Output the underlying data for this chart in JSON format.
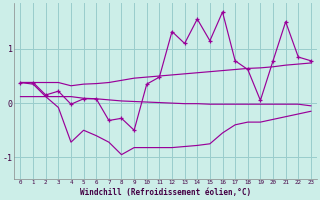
{
  "xlabel": "Windchill (Refroidissement éolien,°C)",
  "background_color": "#cceee8",
  "grid_color": "#99cccc",
  "line_color": "#990099",
  "x": [
    0,
    1,
    2,
    3,
    4,
    5,
    6,
    7,
    8,
    9,
    10,
    11,
    12,
    13,
    14,
    15,
    16,
    17,
    18,
    19,
    20,
    21,
    22,
    23
  ],
  "y_main": [
    0.38,
    0.38,
    0.15,
    0.22,
    -0.02,
    0.08,
    0.08,
    -0.32,
    -0.28,
    -0.5,
    0.35,
    0.48,
    1.32,
    1.1,
    1.55,
    1.15,
    1.68,
    0.78,
    0.62,
    0.05,
    0.78,
    1.5,
    0.85,
    0.78
  ],
  "y_upper": [
    0.38,
    0.38,
    0.38,
    0.38,
    0.32,
    0.35,
    0.36,
    0.38,
    0.42,
    0.46,
    0.48,
    0.5,
    0.52,
    0.54,
    0.56,
    0.58,
    0.6,
    0.62,
    0.64,
    0.65,
    0.67,
    0.7,
    0.72,
    0.74
  ],
  "y_flat": [
    0.12,
    0.12,
    0.12,
    0.12,
    0.12,
    0.09,
    0.08,
    0.06,
    0.04,
    0.03,
    0.02,
    0.01,
    0.0,
    -0.01,
    -0.01,
    -0.02,
    -0.02,
    -0.02,
    -0.02,
    -0.02,
    -0.02,
    -0.02,
    -0.02,
    -0.05
  ],
  "y_lower": [
    0.38,
    0.35,
    0.12,
    -0.08,
    -0.72,
    -0.5,
    -0.6,
    -0.72,
    -0.95,
    -0.82,
    -0.82,
    -0.82,
    -0.82,
    -0.8,
    -0.78,
    -0.75,
    -0.55,
    -0.4,
    -0.35,
    -0.35,
    -0.3,
    -0.25,
    -0.2,
    -0.15
  ],
  "ylim": [
    -1.4,
    1.85
  ],
  "yticks": [
    -1,
    0,
    1
  ]
}
